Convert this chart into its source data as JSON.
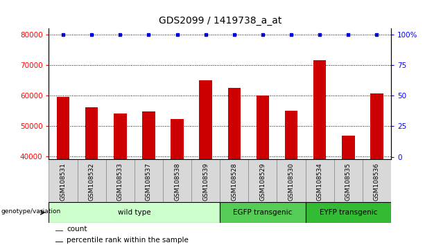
{
  "title": "GDS2099 / 1419738_a_at",
  "categories": [
    "GSM108531",
    "GSM108532",
    "GSM108533",
    "GSM108537",
    "GSM108538",
    "GSM108539",
    "GSM108528",
    "GSM108529",
    "GSM108530",
    "GSM108534",
    "GSM108535",
    "GSM108536"
  ],
  "bar_values": [
    59500,
    56000,
    54000,
    54700,
    52200,
    65000,
    62500,
    60000,
    55000,
    71500,
    46700,
    60500
  ],
  "percentile_values": [
    98,
    98,
    98,
    98,
    98,
    98,
    98,
    98,
    98,
    98,
    98,
    98
  ],
  "bar_color": "#cc0000",
  "percentile_color": "#0000cc",
  "ylim_left": [
    39000,
    82000
  ],
  "ylim_right": [
    -2,
    105
  ],
  "yticks_left": [
    40000,
    50000,
    60000,
    70000,
    80000
  ],
  "yticks_right": [
    0,
    25,
    50,
    75,
    100
  ],
  "yticklabels_right": [
    "0",
    "25",
    "50",
    "75",
    "100%"
  ],
  "groups": [
    {
      "label": "wild type",
      "start": 0,
      "end": 6,
      "color": "#ccffcc"
    },
    {
      "label": "EGFP transgenic",
      "start": 6,
      "end": 9,
      "color": "#55cc55"
    },
    {
      "label": "EYFP transgenic",
      "start": 9,
      "end": 12,
      "color": "#33bb33"
    }
  ],
  "group_label": "genotype/variation",
  "legend_count_label": "count",
  "legend_percentile_label": "percentile rank within the sample",
  "bar_width": 0.45,
  "cell_color": "#d8d8d8",
  "cell_edge_color": "#888888"
}
